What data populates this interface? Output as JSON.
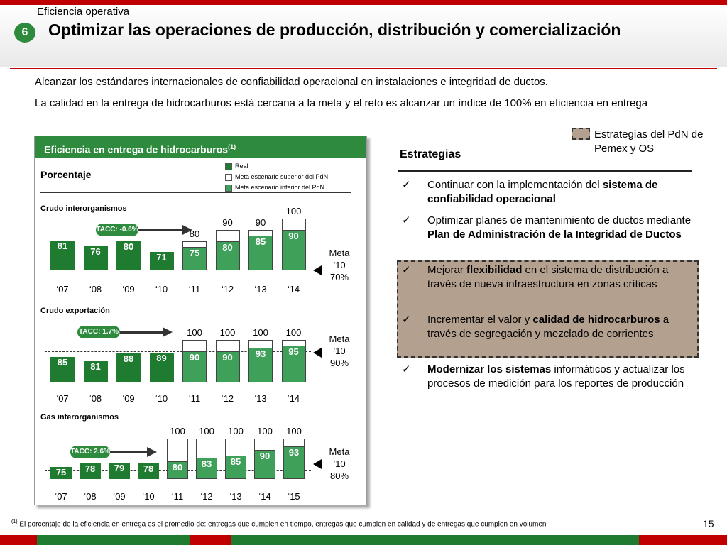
{
  "header": {
    "kicker": "Eficiencia operativa",
    "badge_number": "6",
    "title": "Optimizar las operaciones de producción, distribución y comercialización"
  },
  "intro": {
    "line1": "Alcanzar los estándares internacionales de confiabilidad operacional en instalaciones e integridad de ductos.",
    "line2": "La calidad en la entrega de hidrocarburos está cercana a la meta y el reto es alcanzar un índice de 100% en eficiencia en entrega"
  },
  "panel": {
    "title": "Eficiencia en entrega de hidrocarburos",
    "title_sup": "(1)",
    "unit": "Porcentaje",
    "legend": [
      "Real",
      "Meta escenario superior del PdN",
      "Meta escenario inferior del PdN"
    ]
  },
  "chart_data": [
    {
      "type": "bar",
      "title": "Crudo interorganismos",
      "categories": [
        "‘07",
        "‘08",
        "‘09",
        "‘10",
        "‘11",
        "‘12",
        "‘13",
        "‘14"
      ],
      "series": [
        {
          "name": "Real",
          "values": [
            81,
            76,
            80,
            71,
            null,
            null,
            null,
            null
          ]
        },
        {
          "name": "Meta escenario inferior del PdN",
          "values": [
            null,
            null,
            null,
            null,
            75,
            80,
            85,
            90
          ]
        },
        {
          "name": "Meta escenario superior del PdN",
          "values": [
            null,
            null,
            null,
            null,
            80,
            90,
            90,
            100
          ]
        }
      ],
      "annotation": "TACC: -0.6%",
      "meta_text": [
        "Meta",
        "’10",
        "70%"
      ]
    },
    {
      "type": "bar",
      "title": "Crudo exportación",
      "categories": [
        "‘07",
        "‘08",
        "‘09",
        "‘10",
        "‘11",
        "‘12",
        "‘13",
        "‘14"
      ],
      "series": [
        {
          "name": "Real",
          "values": [
            85,
            81,
            88,
            89,
            null,
            null,
            null,
            null
          ]
        },
        {
          "name": "Meta escenario inferior del PdN",
          "values": [
            null,
            null,
            null,
            null,
            90,
            90,
            93,
            95
          ]
        },
        {
          "name": "Meta escenario superior del PdN",
          "values": [
            null,
            null,
            null,
            null,
            100,
            100,
            100,
            100
          ]
        }
      ],
      "annotation": "TACC: 1.7%",
      "meta_text": [
        "Meta",
        "’10",
        "90%"
      ]
    },
    {
      "type": "bar",
      "title": "Gas interorganismos",
      "categories": [
        "‘07",
        "‘08",
        "‘09",
        "‘10",
        "‘11",
        "‘12",
        "‘13",
        "‘14",
        "‘15"
      ],
      "series": [
        {
          "name": "Real",
          "values": [
            75,
            78,
            79,
            78,
            null,
            null,
            null,
            null,
            null
          ]
        },
        {
          "name": "Meta escenario inferior del PdN",
          "values": [
            null,
            null,
            null,
            null,
            80,
            83,
            85,
            90,
            93
          ]
        },
        {
          "name": "Meta escenario superior del PdN",
          "values": [
            null,
            null,
            null,
            null,
            100,
            100,
            100,
            100,
            100
          ]
        }
      ],
      "annotation": "TACC: 2.6%",
      "meta_text": [
        "Meta",
        "’10",
        "80%"
      ]
    }
  ],
  "strategies": {
    "key_label": "Estrategias del PdN de Pemex y OS",
    "title": "Estrategias",
    "check": "✓",
    "items": [
      {
        "pre": "Continuar con la implementación del ",
        "bold": "sistema de confiabilidad operacional",
        "post": ""
      },
      {
        "pre": "Optimizar planes de mantenimiento de ductos mediante ",
        "bold": "Plan de Administración de la Integridad de Ductos",
        "post": ""
      },
      {
        "pre": "Mejorar ",
        "bold": "flexibilidad",
        "post": " en el sistema de distribución a través de nueva infraestructura en zonas críticas"
      },
      {
        "pre": "Incrementar el valor y ",
        "bold": "calidad de hidrocarburos",
        "post": " a través de segregación y mezclado de corrientes"
      },
      {
        "pre": "",
        "bold": "Modernizar los sistemas",
        "post": " informáticos y actualizar los procesos de medición para los reportes de producción"
      }
    ]
  },
  "footer": {
    "footnote_sup": "(1)",
    "footnote": "El porcentaje de la eficiencia en entrega es el promedio de: entregas que cumplen en tiempo, entregas que cumplen en calidad y de entregas que cumplen en volumen",
    "page_number": "15"
  },
  "colors": {
    "brand_red": "#c00000",
    "real_green": "#1e7b30",
    "meta_green": "#3fa05a",
    "highlight": "#b4a08e"
  }
}
